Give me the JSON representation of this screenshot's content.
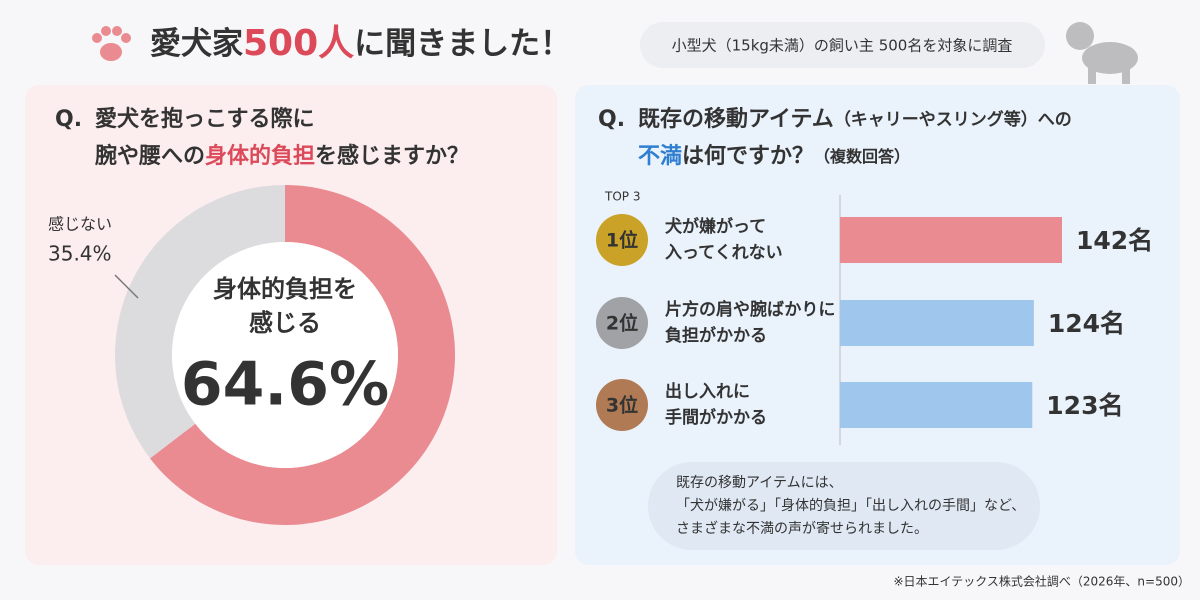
{
  "header": {
    "title": [
      "愛犬家",
      "500人",
      "に聞きました！"
    ],
    "subtitle": "小型犬（15kg未満）の飼い主 500名を対象に調査"
  },
  "chart_data": [
    {
      "type": "pie",
      "title": [
        "Q.",
        "愛犬を抱っこする際に",
        "腕や腰への",
        "身体的負担",
        "を感じますか？"
      ],
      "categories": [
        [
          "身体的負担を",
          "感じる"
        ],
        [
          "感じない"
        ]
      ],
      "values": [
        64.6,
        35.4
      ],
      "value_labels": [
        "64.6%",
        "35.4%"
      ],
      "colors": [
        "#e98b91",
        "#dcdcdf"
      ]
    },
    {
      "type": "hbar",
      "title": [
        "Q.",
        "既存の移動アイテム",
        "（キャリーやスリング等）への",
        "不満",
        "は何ですか？",
        "（複数回答）"
      ],
      "subtitle": "TOP 3",
      "ranks": [
        "1位",
        "2位",
        "3位"
      ],
      "categories": [
        [
          "犬が嫌がって",
          "入ってくれない"
        ],
        [
          "片方の肩や腕ばかりに",
          "負担がかかる"
        ],
        [
          "出し入れに",
          "手間がかかる"
        ]
      ],
      "values": [
        142,
        124,
        123
      ],
      "value_labels": [
        "142名",
        "124名",
        "123名"
      ],
      "colors": [
        "#e98b91",
        "#9fc6ec",
        "#9fc6ec"
      ],
      "note": [
        "既存の移動アイテムには、",
        "「犬が嫌がる」「身体的負担」「出し入れの手間」など、",
        "さまざまな不満の声が寄せられました。"
      ]
    }
  ],
  "footnote": "※日本エイテックス株式会社調べ（2026年、n=500）"
}
